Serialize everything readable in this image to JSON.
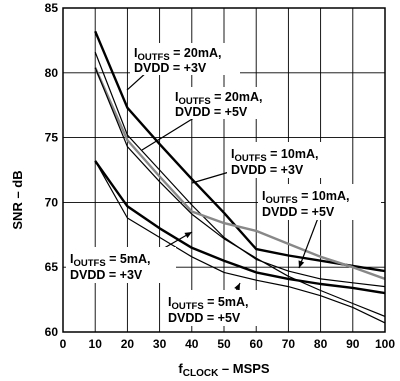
{
  "chart_data": {
    "type": "line",
    "xlabel": {
      "main": "f",
      "sub": "CLOCK",
      "rest": " – MSPS"
    },
    "ylabel": "SNR – dB",
    "xlim": [
      0,
      100
    ],
    "ylim": [
      60,
      85
    ],
    "x_ticks": [
      0,
      10,
      20,
      30,
      40,
      50,
      60,
      70,
      80,
      90,
      100
    ],
    "y_ticks": [
      60,
      65,
      70,
      75,
      80,
      85
    ],
    "grid": true,
    "series": [
      {
        "key": "s20_3",
        "color": "#000000",
        "thick": true,
        "x": [
          10,
          20,
          30,
          40,
          50,
          60,
          70,
          80,
          90,
          100
        ],
        "y": [
          83.2,
          77.3,
          74.5,
          71.8,
          69.2,
          66.4,
          65.9,
          65.5,
          65.1,
          64.7
        ]
      },
      {
        "key": "s20_5",
        "color": "#000000",
        "thick": false,
        "x": [
          10,
          20,
          30,
          40,
          50,
          60,
          70,
          80,
          90,
          100
        ],
        "y": [
          81.6,
          75.2,
          72.5,
          69.8,
          67.3,
          65.6,
          64.7,
          64.1,
          63.8,
          63.5
        ]
      },
      {
        "key": "s10_3",
        "color": "#888888",
        "thick": true,
        "x": [
          10,
          20,
          30,
          40,
          50,
          60,
          70,
          80,
          90,
          100
        ],
        "y": [
          80.4,
          74.8,
          72.0,
          69.3,
          68.4,
          67.8,
          66.8,
          65.8,
          65.0,
          64.1
        ]
      },
      {
        "key": "s10_5",
        "color": "#000000",
        "thick": false,
        "x": [
          10,
          20,
          30,
          40,
          50,
          60,
          70,
          80,
          90,
          100
        ],
        "y": [
          80.4,
          74.3,
          71.6,
          69.1,
          67.2,
          65.7,
          64.3,
          63.2,
          62.2,
          61.2
        ]
      },
      {
        "key": "s5_3",
        "color": "#000000",
        "thick": true,
        "x": [
          10,
          20,
          30,
          40,
          50,
          60,
          70,
          80,
          90,
          100
        ],
        "y": [
          73.2,
          69.7,
          68.0,
          66.5,
          65.5,
          64.6,
          64.1,
          63.7,
          63.4,
          63.0
        ]
      },
      {
        "key": "s5_5",
        "color": "#000000",
        "thick": false,
        "x": [
          10,
          20,
          30,
          40,
          50,
          60,
          70,
          80,
          90,
          100
        ],
        "y": [
          73.2,
          68.8,
          67.3,
          65.8,
          64.6,
          64.0,
          63.5,
          62.8,
          61.9,
          60.7
        ]
      }
    ],
    "annotations": [
      {
        "main": "I",
        "sub": "OUTFS",
        "rest": " = 20mA,",
        "line2": "DVDD = +3V"
      },
      {
        "main": "I",
        "sub": "OUTFS",
        "rest": " = 20mA,",
        "line2": "DVDD = +5V"
      },
      {
        "main": "I",
        "sub": "OUTFS",
        "rest": " = 10mA,",
        "line2": "DVDD = +3V"
      },
      {
        "main": "I",
        "sub": "OUTFS",
        "rest": " = 10mA,",
        "line2": "DVDD = +5V"
      },
      {
        "main": "I",
        "sub": "OUTFS",
        "rest": " = 5mA,",
        "line2": "DVDD = +3V"
      },
      {
        "main": "I",
        "sub": "OUTFS",
        "rest": " = 5mA,",
        "line2": "DVDD = +5V"
      }
    ]
  }
}
